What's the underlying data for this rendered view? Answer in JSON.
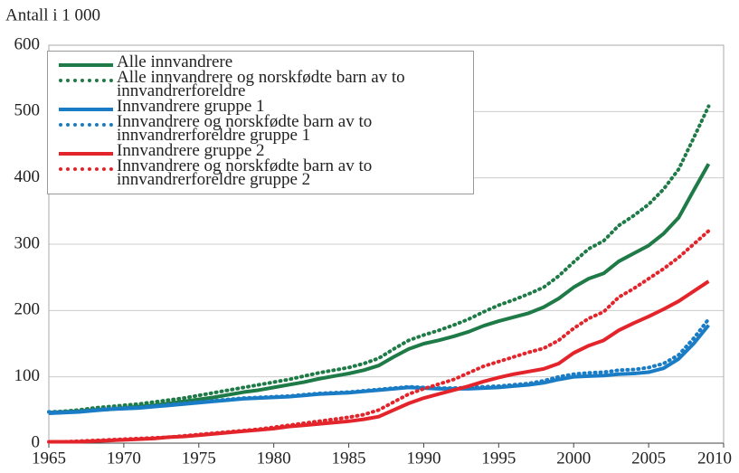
{
  "chart_data": {
    "type": "line",
    "y_axis_label": "Antall i 1 000",
    "x": [
      1965,
      1966,
      1967,
      1968,
      1969,
      1970,
      1971,
      1972,
      1973,
      1974,
      1975,
      1976,
      1977,
      1978,
      1979,
      1980,
      1981,
      1982,
      1983,
      1984,
      1985,
      1986,
      1987,
      1988,
      1989,
      1990,
      1991,
      1992,
      1993,
      1994,
      1995,
      1996,
      1997,
      1998,
      1999,
      2000,
      2001,
      2002,
      2003,
      2004,
      2005,
      2006,
      2007,
      2008,
      2009
    ],
    "series": [
      {
        "name": "Alle innvandrere",
        "color": "#1e7a46",
        "dash": false,
        "values": [
          46,
          47,
          48,
          50,
          51,
          53,
          55,
          57,
          60,
          63,
          66,
          69,
          73,
          77,
          80,
          84,
          88,
          92,
          97,
          101,
          105,
          110,
          117,
          130,
          142,
          150,
          155,
          161,
          168,
          177,
          184,
          190,
          196,
          205,
          218,
          235,
          248,
          256,
          274,
          286,
          298,
          316,
          340,
          381,
          421
        ]
      },
      {
        "name": "Alle innvandrere og norskfødte barn av to innvandrerforeldre",
        "color": "#1e7a46",
        "dash": true,
        "values": [
          47,
          48,
          50,
          53,
          55,
          57,
          59,
          62,
          65,
          68,
          72,
          76,
          80,
          84,
          88,
          92,
          96,
          101,
          106,
          110,
          114,
          120,
          128,
          142,
          155,
          163,
          170,
          178,
          187,
          198,
          208,
          216,
          225,
          235,
          252,
          273,
          293,
          305,
          328,
          343,
          360,
          383,
          413,
          460,
          508
        ]
      },
      {
        "name": "Innvandrere gruppe 1",
        "color": "#1a7cc4",
        "dash": false,
        "values": [
          45,
          46,
          47,
          49,
          51,
          52,
          53,
          55,
          57,
          59,
          61,
          63,
          65,
          67,
          68,
          69,
          70,
          72,
          74,
          75,
          76,
          78,
          80,
          82,
          84,
          83,
          82,
          82,
          82,
          83,
          84,
          86,
          88,
          91,
          96,
          100,
          101,
          102,
          104,
          105,
          107,
          113,
          127,
          150,
          178
        ]
      },
      {
        "name": "Innvandrere og norskfødte barn av to innvandrerforeldre gruppe 1",
        "color": "#1a7cc4",
        "dash": true,
        "values": [
          47,
          47,
          48,
          50,
          52,
          53,
          54,
          56,
          58,
          60,
          62,
          64,
          66,
          68,
          69,
          70,
          71,
          73,
          75,
          76,
          77,
          79,
          81,
          83,
          85,
          84,
          83,
          83,
          84,
          85,
          86,
          88,
          90,
          94,
          100,
          104,
          106,
          107,
          110,
          111,
          114,
          120,
          133,
          158,
          187
        ]
      },
      {
        "name": "Innvandrere gruppe 2",
        "color": "#e3242b",
        "dash": false,
        "values": [
          2,
          2,
          2,
          3,
          4,
          5,
          6,
          7,
          9,
          10,
          12,
          14,
          16,
          18,
          20,
          22,
          25,
          27,
          29,
          31,
          33,
          36,
          40,
          50,
          60,
          68,
          74,
          80,
          86,
          93,
          99,
          104,
          108,
          112,
          120,
          136,
          147,
          155,
          170,
          181,
          191,
          202,
          214,
          229,
          244
        ]
      },
      {
        "name": "Innvandrere og norskfødte barn av to innvandrerforeldre gruppe 2",
        "color": "#e3242b",
        "dash": true,
        "values": [
          2,
          2,
          3,
          4,
          5,
          6,
          7,
          8,
          9,
          11,
          13,
          15,
          17,
          19,
          21,
          24,
          27,
          30,
          33,
          36,
          39,
          43,
          50,
          62,
          74,
          82,
          89,
          96,
          106,
          116,
          123,
          130,
          137,
          143,
          155,
          173,
          188,
          198,
          220,
          233,
          248,
          263,
          280,
          300,
          320
        ]
      }
    ],
    "xlim": [
      1965,
      2010
    ],
    "xticks": [
      1965,
      1970,
      1975,
      1980,
      1985,
      1990,
      1995,
      2000,
      2005,
      2010
    ],
    "ylim": [
      0,
      600
    ],
    "yticks": [
      0,
      100,
      200,
      300,
      400,
      500,
      600
    ],
    "grid": true,
    "legend": "upper left"
  }
}
